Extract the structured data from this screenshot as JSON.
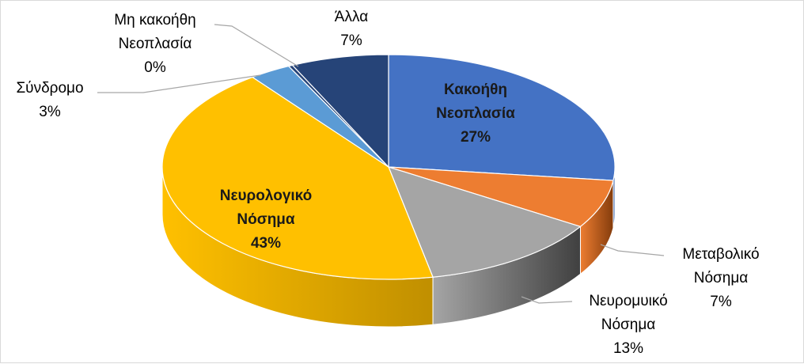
{
  "chart_data": {
    "type": "pie",
    "title": "",
    "slices": [
      {
        "label": "Κακοήθη Νεοπλασία",
        "label_lines": [
          "Κακοήθη",
          "Νεοπλασία"
        ],
        "percent_label": "27%",
        "value": 27,
        "color": "#4472C4",
        "side_color": "#2F5597"
      },
      {
        "label": "Μεταβολικό Νόσημα",
        "label_lines": [
          "Μεταβολικό",
          "Νόσημα"
        ],
        "percent_label": "7%",
        "value": 7,
        "color": "#ED7D31",
        "side_color": "#843C0C"
      },
      {
        "label": "Νευρομυικό Νόσημα",
        "label_lines": [
          "Νευρομυικό",
          "Νόσημα"
        ],
        "percent_label": "13%",
        "value": 13,
        "color": "#A5A5A5",
        "side_color": "#404040"
      },
      {
        "label": "Νευρολογικό Νόσημα",
        "label_lines": [
          "Νευρολογικό",
          "Νόσημα"
        ],
        "percent_label": "43%",
        "value": 43,
        "color": "#FFC000",
        "side_color": "#C08F00"
      },
      {
        "label": "Σύνδρομο",
        "label_lines": [
          "Σύνδρομο"
        ],
        "percent_label": "3%",
        "value": 3,
        "color": "#5B9BD5",
        "side_color": "#2E75B6"
      },
      {
        "label": "Μη κακοήθη Νεοπλασία",
        "label_lines": [
          "Μη κακοήθη",
          "Νεοπλασία"
        ],
        "percent_label": "0%",
        "value": 0.3,
        "color": "#264478",
        "side_color": "#1F3864"
      },
      {
        "label": "Άλλα",
        "label_lines": [
          "Άλλα"
        ],
        "percent_label": "7%",
        "value": 7,
        "color": "#264478",
        "side_color": "#1F3864"
      }
    ]
  }
}
